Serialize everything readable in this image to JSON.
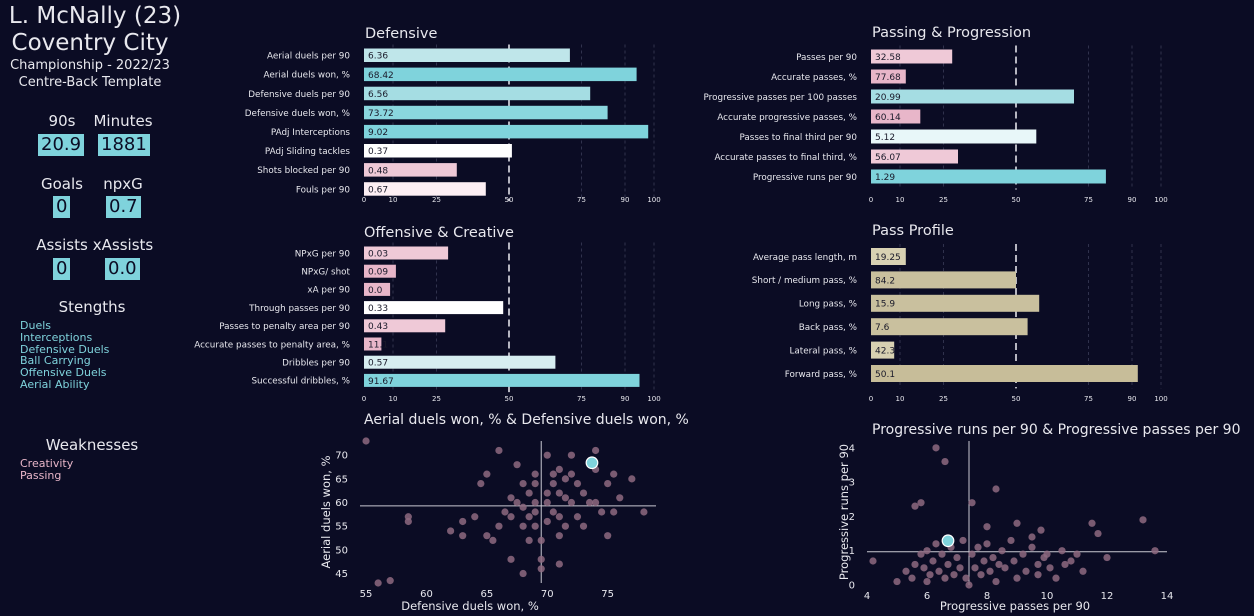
{
  "player": {
    "name": "L. McNally (23)",
    "club": "Coventry City",
    "competition": "Championship - 2022/23",
    "template": "Centre-Back Template"
  },
  "stats": {
    "nineties_label": "90s",
    "nineties": "20.9",
    "minutes_label": "Minutes",
    "minutes": "1881",
    "goals_label": "Goals",
    "goals": "0",
    "npxg_label": "npxG",
    "npxg": "0.7",
    "assists_label": "Assists",
    "assists": "0",
    "xassists_label": "xAssists",
    "xassists": "0.0"
  },
  "strengths": {
    "title": "Stengths",
    "items": [
      "Duels",
      "Interceptions",
      "Defensive Duels",
      "Ball Carrying",
      "Offensive Duels",
      "Aerial Ability"
    ]
  },
  "weaknesses": {
    "title": "Weaknesses",
    "items": [
      "Creativity",
      "Passing"
    ]
  },
  "colors": {
    "background": "#0b0c24",
    "teal": "#7fd3dc",
    "pink": "#e8b6c9",
    "white": "#ffffff",
    "tan": "#c7bd99",
    "marker": "#7fd3dc"
  },
  "chart_data": [
    {
      "type": "bar",
      "title": "Defensive",
      "orientation": "horizontal",
      "xlim": [
        0,
        100
      ],
      "xticks": [
        0,
        10,
        25,
        50,
        75,
        90,
        100
      ],
      "reference_line": 50,
      "categories": [
        "Aerial duels per 90",
        "Aerial duels won, %",
        "Defensive duels per 90",
        "Defensive duels won, %",
        "PAdj Interceptions",
        "PAdj Sliding tackles",
        "Shots blocked per 90",
        "Fouls per 90"
      ],
      "labels": [
        "6.36",
        "68.42",
        "6.56",
        "73.72",
        "9.02",
        "0.37",
        "0.48",
        "0.67"
      ],
      "values": [
        71,
        94,
        78,
        84,
        98,
        51,
        32,
        42
      ],
      "colors": [
        "#bfe6ea",
        "#7fd3dc",
        "#a5dde3",
        "#8ad6de",
        "#7fd3dc",
        "#ffffff",
        "#efc9d7",
        "#fdeff4"
      ]
    },
    {
      "type": "bar",
      "title": "Passing & Progression",
      "orientation": "horizontal",
      "xlim": [
        0,
        100
      ],
      "xticks": [
        0,
        10,
        25,
        50,
        75,
        90,
        100
      ],
      "reference_line": 50,
      "categories": [
        "Passes per 90",
        "Accurate passes, %",
        "Progressive passes per 100 passes",
        "Accurate progressive passes, %",
        "Passes to final third per 90",
        "Accurate passes to final third, %",
        "Progressive runs per 90"
      ],
      "labels": [
        "32.58",
        "77.68",
        "20.99",
        "60.14",
        "5.12",
        "56.07",
        "1.29"
      ],
      "values": [
        28,
        12,
        70,
        17,
        57,
        30,
        81
      ],
      "colors": [
        "#efc9d7",
        "#e8b6c9",
        "#a5dde3",
        "#e8b6c9",
        "#e8f7f9",
        "#efc9d7",
        "#7fd3dc"
      ]
    },
    {
      "type": "bar",
      "title": "Offensive & Creative",
      "orientation": "horizontal",
      "xlim": [
        0,
        100
      ],
      "xticks": [
        0,
        10,
        25,
        50,
        75,
        90,
        100
      ],
      "reference_line": 50,
      "categories": [
        "NPxG per 90",
        "NPxG/ shot",
        "xA per 90",
        "Through passes per 90",
        "Passes to penalty area per 90",
        "Accurate passes to penalty area, %",
        "Dribbles per 90",
        "Successful dribbles, %"
      ],
      "labels": [
        "0.03",
        "0.09",
        "0.0",
        "0.33",
        "0.43",
        "11.1",
        "0.57",
        "91.67"
      ],
      "values": [
        29,
        11,
        9,
        48,
        28,
        6,
        66,
        95
      ],
      "colors": [
        "#efc9d7",
        "#e8b6c9",
        "#e8b6c9",
        "#ffffff",
        "#efc9d7",
        "#e8b6c9",
        "#d7eef1",
        "#7fd3dc"
      ]
    },
    {
      "type": "bar",
      "title": "Pass Profile",
      "orientation": "horizontal",
      "xlim": [
        0,
        100
      ],
      "xticks": [
        0,
        10,
        25,
        50,
        75,
        90,
        100
      ],
      "reference_line": 50,
      "categories": [
        "Average pass length, m",
        "Short / medium pass, %",
        "Long pass, %",
        "Back pass, %",
        "Lateral pass, %",
        "Forward pass, %"
      ],
      "labels": [
        "19.25",
        "84.2",
        "15.9",
        "7.6",
        "42.3",
        "50.1"
      ],
      "values": [
        12,
        50,
        58,
        54,
        8,
        92
      ],
      "colors": [
        "#d8d1b2",
        "#c9c09e",
        "#c9c09e",
        "#c9c09e",
        "#d8d1b2",
        "#c7bd99"
      ]
    },
    {
      "type": "scatter",
      "title": "Aerial duels won, % & Defensive duels won, %",
      "xlabel": "Defensive duels won, %",
      "ylabel": "Aerial duels won, %",
      "xlim": [
        54.5,
        79
      ],
      "ylim": [
        43,
        73
      ],
      "xticks": [
        55,
        60,
        65,
        70,
        75
      ],
      "yticks": [
        45,
        50,
        55,
        60,
        65,
        70
      ],
      "mean_lines": {
        "x": 69.5,
        "y": 59.3
      },
      "highlight": {
        "x": 73.7,
        "y": 68.4
      },
      "points": [
        [
          55,
          73
        ],
        [
          56,
          43
        ],
        [
          57,
          43.5
        ],
        [
          58.5,
          57
        ],
        [
          58.5,
          56
        ],
        [
          62,
          54
        ],
        [
          63,
          56
        ],
        [
          63,
          53
        ],
        [
          64,
          57
        ],
        [
          64.5,
          64
        ],
        [
          65,
          66
        ],
        [
          65,
          53
        ],
        [
          65.5,
          52
        ],
        [
          66,
          71
        ],
        [
          66,
          55
        ],
        [
          66.5,
          58
        ],
        [
          67,
          61
        ],
        [
          67,
          57
        ],
        [
          67.5,
          68
        ],
        [
          67.5,
          60
        ],
        [
          68,
          64
        ],
        [
          68,
          59
        ],
        [
          68,
          55
        ],
        [
          68.5,
          62
        ],
        [
          68.5,
          57
        ],
        [
          68.5,
          52
        ],
        [
          69,
          66
        ],
        [
          69,
          64
        ],
        [
          69,
          60
        ],
        [
          69,
          58
        ],
        [
          69,
          55
        ],
        [
          69.5,
          52
        ],
        [
          69.5,
          48
        ],
        [
          69.5,
          46
        ],
        [
          70,
          70
        ],
        [
          70,
          62
        ],
        [
          70,
          60
        ],
        [
          70,
          56
        ],
        [
          70.5,
          66
        ],
        [
          70.5,
          64
        ],
        [
          70.5,
          58
        ],
        [
          71,
          67
        ],
        [
          71,
          62
        ],
        [
          71,
          57
        ],
        [
          71,
          53
        ],
        [
          71,
          47
        ],
        [
          71.5,
          65
        ],
        [
          71.5,
          61
        ],
        [
          71.5,
          55
        ],
        [
          72,
          70
        ],
        [
          72,
          66
        ],
        [
          72,
          60
        ],
        [
          72.5,
          64
        ],
        [
          72.5,
          57
        ],
        [
          73,
          62
        ],
        [
          73,
          55
        ],
        [
          73.5,
          60
        ],
        [
          74,
          71
        ],
        [
          74,
          67
        ],
        [
          74,
          60
        ],
        [
          74.5,
          58
        ],
        [
          75,
          64
        ],
        [
          75,
          53
        ],
        [
          75.5,
          66
        ],
        [
          75.5,
          58
        ],
        [
          76,
          61
        ],
        [
          77,
          65
        ],
        [
          78,
          58
        ],
        [
          67,
          48
        ],
        [
          68,
          45
        ]
      ]
    },
    {
      "type": "scatter",
      "title": "Progressive runs per 90 & Progressive passes per 90",
      "xlabel": "Progressive passes per 90",
      "ylabel": "Progressive runs per 90",
      "xlim": [
        4,
        14
      ],
      "ylim": [
        0,
        4.2
      ],
      "xticks": [
        4,
        6,
        8,
        10,
        12,
        14
      ],
      "yticks": [
        0,
        1,
        2,
        3,
        4
      ],
      "mean_lines": {
        "x": 7.4,
        "y": 0.97
      },
      "highlight": {
        "x": 6.7,
        "y": 1.29
      },
      "points": [
        [
          6.3,
          4.0
        ],
        [
          6.6,
          3.6
        ],
        [
          8.3,
          2.8
        ],
        [
          5.6,
          2.3
        ],
        [
          5.8,
          2.4
        ],
        [
          7.5,
          2.4
        ],
        [
          8.0,
          1.7
        ],
        [
          9.0,
          1.8
        ],
        [
          9.5,
          1.4
        ],
        [
          11.5,
          1.8
        ],
        [
          11.7,
          1.5
        ],
        [
          13.2,
          1.9
        ],
        [
          13.6,
          1.0
        ],
        [
          10.5,
          1.0
        ],
        [
          10.0,
          0.9
        ],
        [
          10.8,
          0.7
        ],
        [
          9.8,
          1.6
        ],
        [
          9.7,
          0.6
        ],
        [
          4.2,
          0.7
        ],
        [
          5.0,
          0.1
        ],
        [
          5.3,
          0.4
        ],
        [
          5.5,
          0.2
        ],
        [
          5.6,
          0.6
        ],
        [
          5.8,
          0.9
        ],
        [
          5.9,
          0.5
        ],
        [
          6.0,
          1.0
        ],
        [
          6.1,
          0.3
        ],
        [
          6.2,
          0.7
        ],
        [
          6.3,
          1.2
        ],
        [
          6.4,
          0.4
        ],
        [
          6.5,
          0.9
        ],
        [
          6.6,
          0.2
        ],
        [
          6.7,
          0.6
        ],
        [
          6.8,
          1.1
        ],
        [
          6.9,
          0.3
        ],
        [
          7.0,
          0.8
        ],
        [
          7.1,
          0.5
        ],
        [
          7.2,
          1.3
        ],
        [
          7.3,
          0.2
        ],
        [
          7.5,
          0.9
        ],
        [
          7.6,
          0.5
        ],
        [
          7.7,
          1.1
        ],
        [
          7.8,
          0.3
        ],
        [
          7.9,
          0.7
        ],
        [
          8.0,
          1.2
        ],
        [
          8.1,
          0.4
        ],
        [
          8.2,
          0.8
        ],
        [
          8.3,
          0.1
        ],
        [
          8.5,
          1.0
        ],
        [
          8.6,
          0.5
        ],
        [
          8.8,
          1.3
        ],
        [
          8.9,
          0.7
        ],
        [
          9.0,
          0.2
        ],
        [
          9.2,
          0.9
        ],
        [
          9.3,
          0.4
        ],
        [
          9.5,
          1.1
        ],
        [
          9.7,
          0.3
        ],
        [
          9.9,
          0.8
        ],
        [
          10.1,
          0.5
        ],
        [
          10.3,
          0.2
        ],
        [
          10.6,
          0.6
        ],
        [
          11.0,
          0.9
        ],
        [
          11.2,
          0.4
        ],
        [
          12.0,
          0.8
        ],
        [
          6.0,
          0.1
        ],
        [
          7.4,
          0.0
        ],
        [
          8.4,
          0.6
        ]
      ]
    }
  ]
}
